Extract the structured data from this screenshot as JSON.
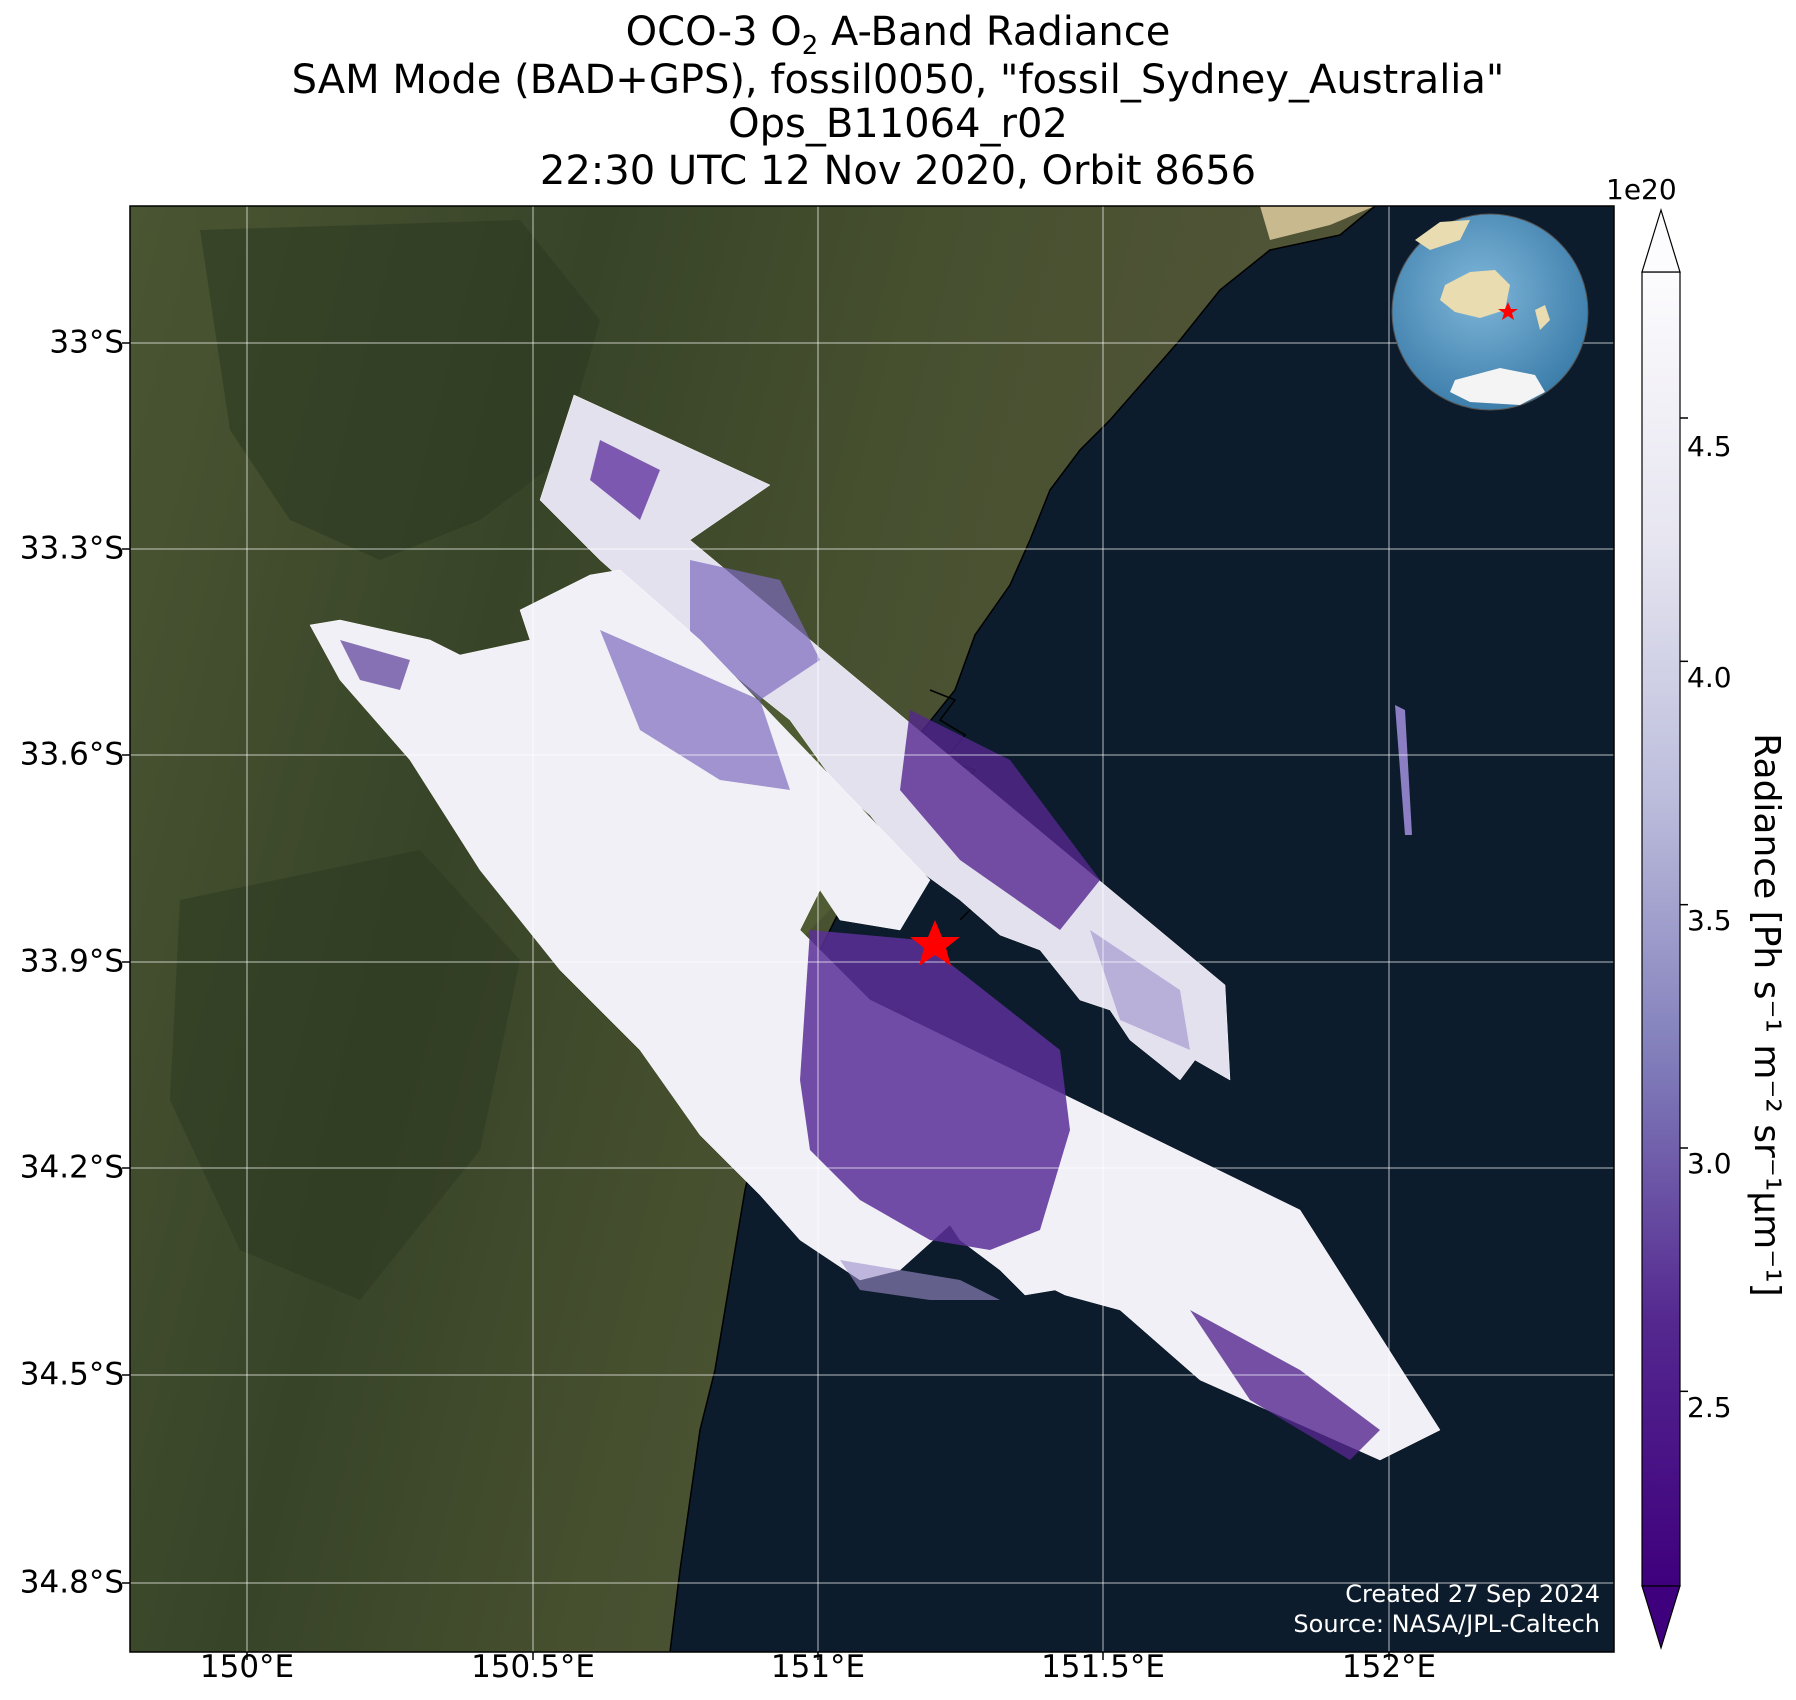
{
  "title": {
    "line1_prefix": "OCO-3 O",
    "line1_sub": "2",
    "line1_suffix": " A-Band Radiance",
    "line2": "SAM Mode (BAD+GPS), fossil0050, \"fossil_Sydney_Australia\"",
    "line3": "Ops_B11064_r02",
    "line4": "22:30 UTC 12 Nov 2020, Orbit 8656"
  },
  "map": {
    "lat_ticks": [
      "33°S",
      "33.3°S",
      "33.6°S",
      "33.9°S",
      "34.2°S",
      "34.5°S",
      "34.8°S"
    ],
    "lon_ticks": [
      "150°E",
      "150.5°E",
      "151°E",
      "151.5°E",
      "152°E"
    ],
    "target_marker": "red-star",
    "target_name": "fossil_Sydney_Australia",
    "colors": {
      "land": "#3d4a2c",
      "ocean": "#0d1c2c",
      "coastline": "#000000",
      "marker": "#ff0000"
    }
  },
  "colorbar": {
    "label": "Radiance [Ph s⁻¹ m⁻² sr⁻¹μm⁻¹]",
    "multiplier": "1e20",
    "ticks": [
      "2.5",
      "3.0",
      "3.5",
      "4.0",
      "4.5"
    ],
    "tick_values": [
      2.5,
      3.0,
      3.5,
      4.0,
      4.5
    ],
    "range": [
      2.1,
      4.8
    ],
    "colormap": "Purples_r",
    "extend": "both",
    "colors": {
      "low": "#3f007d",
      "high": "#fcfbfd"
    }
  },
  "inset": {
    "content": "globe-locator",
    "marker": "red-star"
  },
  "credit": {
    "created": "Created 27 Sep 2024",
    "source": "Source: NASA/JPL-Caltech"
  }
}
